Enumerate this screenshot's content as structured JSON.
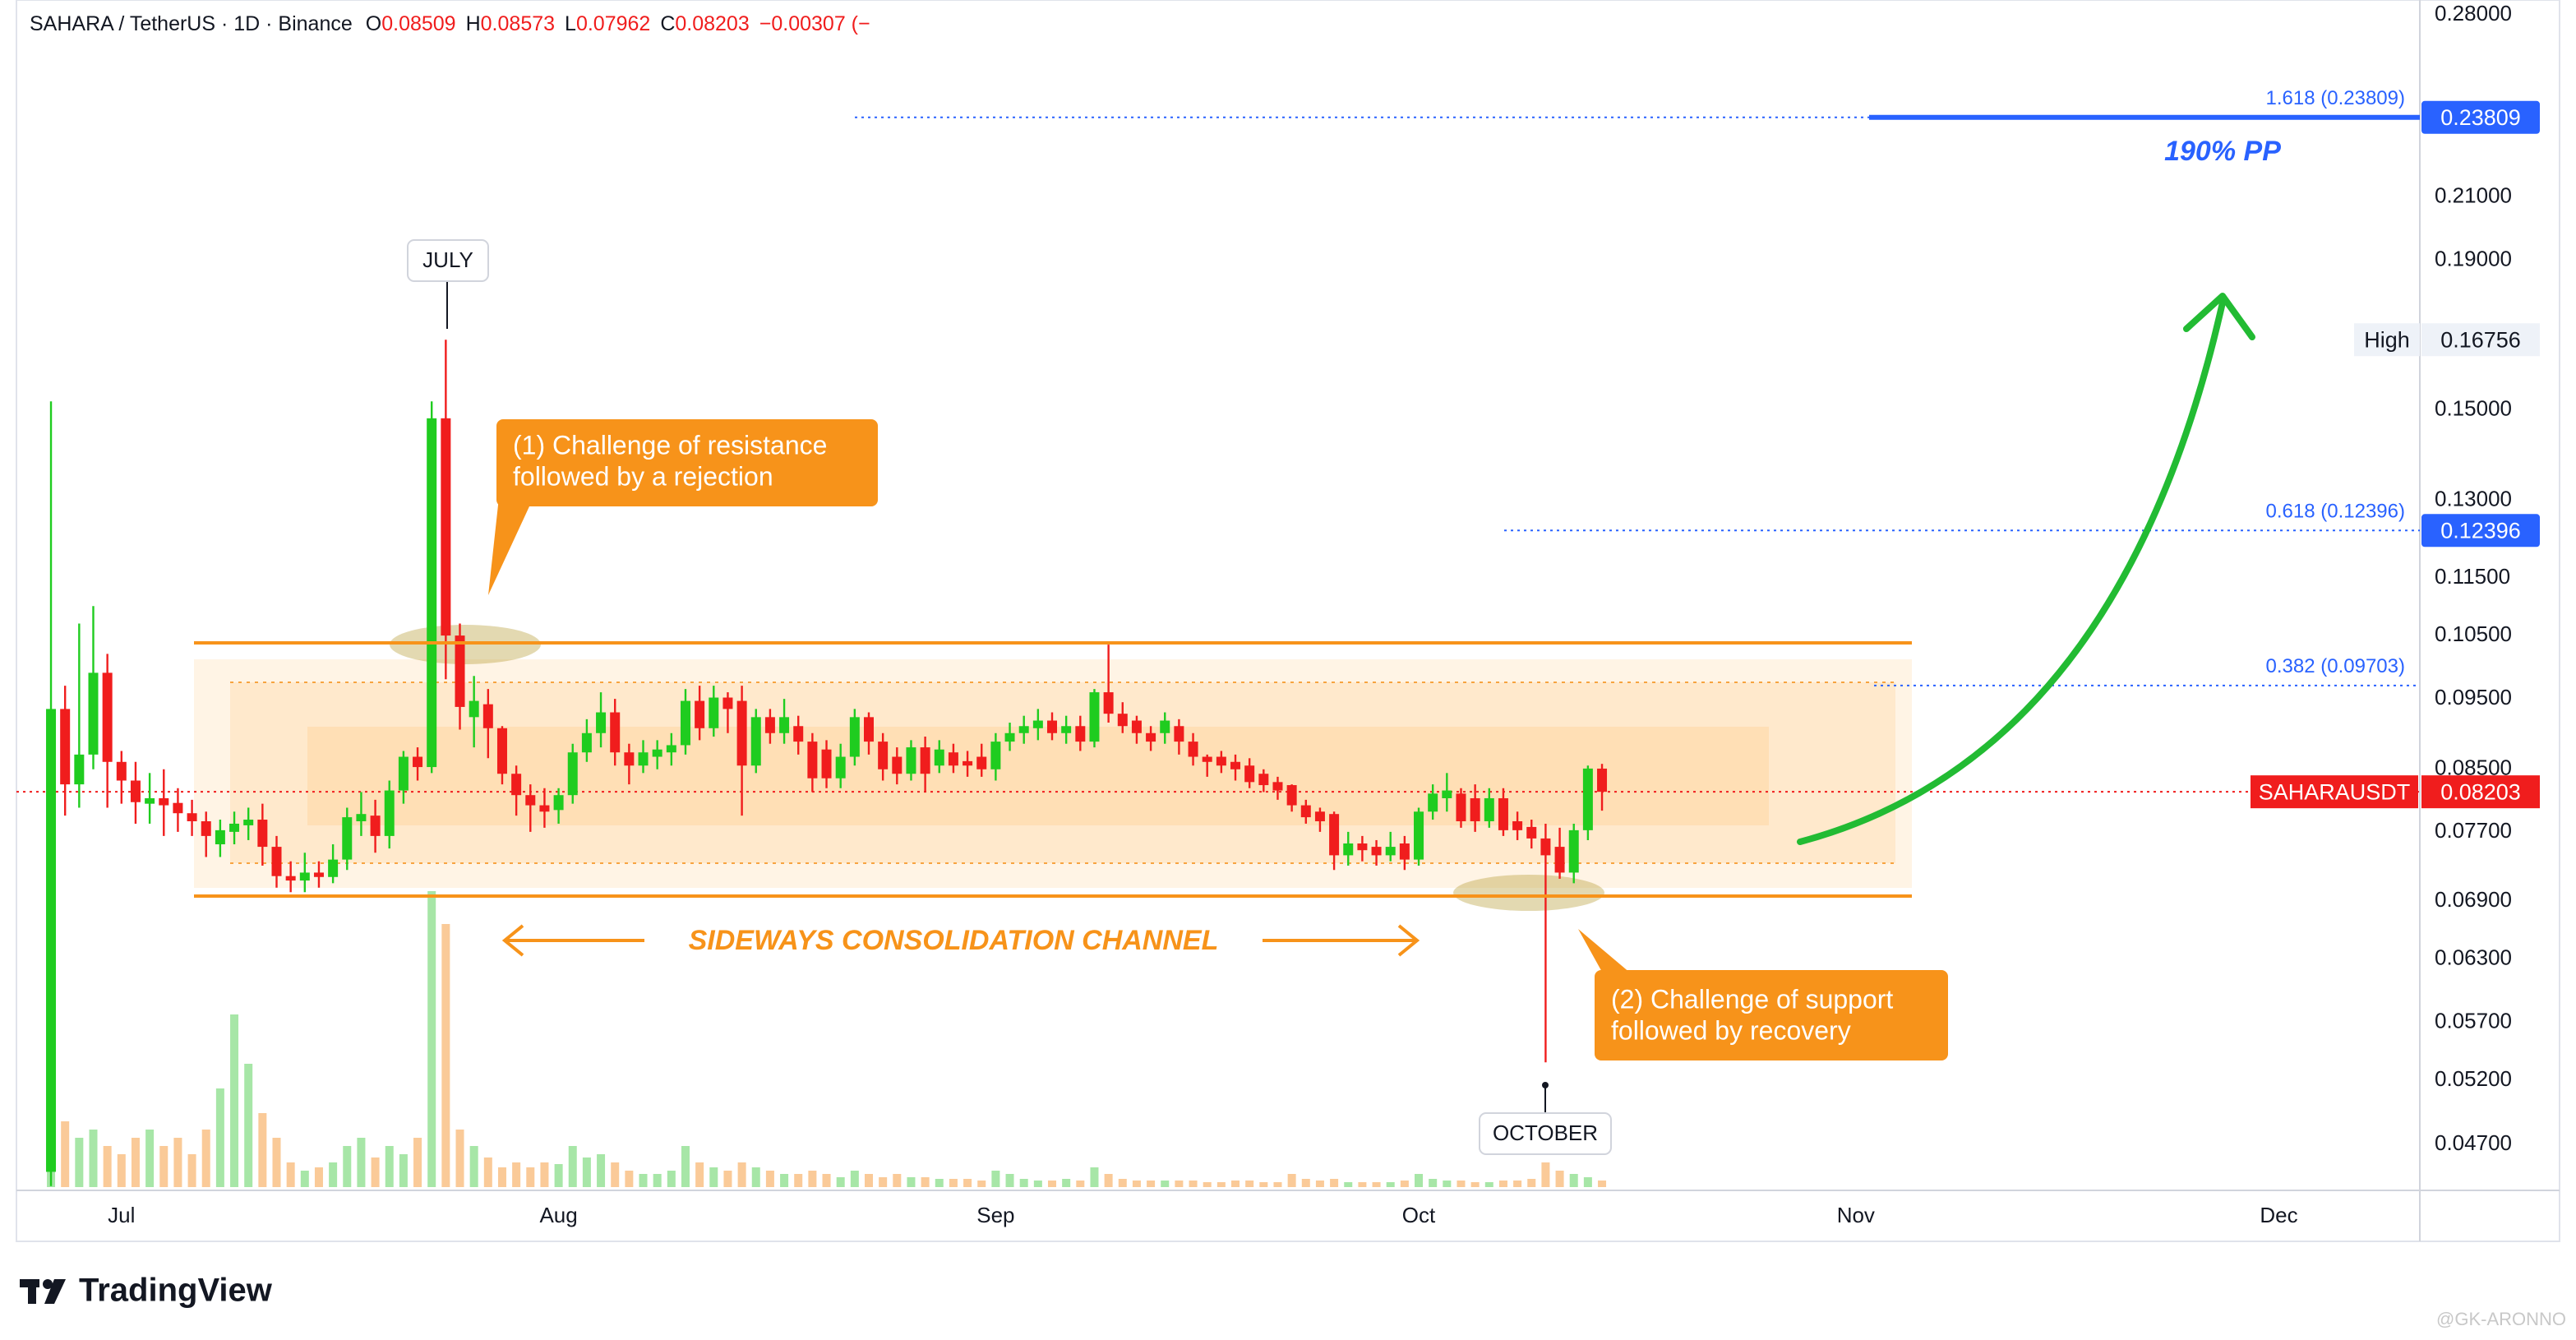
{
  "header": {
    "title": "SAHARA / TetherUS · 1D · Binance",
    "ohlc_keys": [
      "O",
      "H",
      "L",
      "C"
    ],
    "change": "−0.00307 (−"
  },
  "chart_data": {
    "type": "candlestick",
    "log_scale": true,
    "grid": false,
    "ylim": [
      0.0437,
      0.2866
    ],
    "yticks": [
      {
        "value": 0.28,
        "label": "0.28000"
      },
      {
        "value": 0.21,
        "label": "0.21000"
      },
      {
        "value": 0.19,
        "label": "0.19000"
      },
      {
        "value": 0.15,
        "label": "0.15000"
      },
      {
        "value": 0.13,
        "label": "0.13000"
      },
      {
        "value": 0.115,
        "label": "0.11500"
      },
      {
        "value": 0.105,
        "label": "0.10500"
      },
      {
        "value": 0.095,
        "label": "0.09500"
      },
      {
        "value": 0.085,
        "label": "0.08500"
      },
      {
        "value": 0.077,
        "label": "0.07700"
      },
      {
        "value": 0.069,
        "label": "0.06900"
      },
      {
        "value": 0.063,
        "label": "0.06300"
      },
      {
        "value": 0.057,
        "label": "0.05700"
      },
      {
        "value": 0.052,
        "label": "0.05200"
      },
      {
        "value": 0.047,
        "label": "0.04700"
      }
    ],
    "xlim": [
      -2.45,
      168
    ],
    "xticks": [
      {
        "value": 5,
        "label": "Jul"
      },
      {
        "value": 36,
        "label": "Aug"
      },
      {
        "value": 67,
        "label": "Sep"
      },
      {
        "value": 97,
        "label": "Oct"
      },
      {
        "value": 128,
        "label": "Nov"
      },
      {
        "value": 158,
        "label": "Dec"
      }
    ],
    "series": [
      {
        "name": "SAHARAUSDT",
        "up_color": "#1fcc1f",
        "down_color": "#f01d1d",
        "volume_up_color": "rgba(60,200,60,0.45)",
        "volume_down_color": "rgba(245,150,50,0.5)",
        "open": [
          0.045,
          0.0935,
          0.083,
          0.087,
          0.099,
          0.086,
          0.0835,
          0.0805,
          0.0812,
          0.0806,
          0.0793,
          0.0783,
          0.0755,
          0.077,
          0.0778,
          0.0785,
          0.0752,
          0.0718,
          0.0713,
          0.0722,
          0.0717,
          0.0737,
          0.0783,
          0.079,
          0.0765,
          0.0822,
          0.0867,
          0.0853,
          0.148,
          0.105,
          0.0923,
          0.0942,
          0.0907,
          0.0844,
          0.0816,
          0.0803,
          0.0797,
          0.0816,
          0.0873,
          0.09,
          0.093,
          0.0873,
          0.0855,
          0.0867,
          0.0873,
          0.0883,
          0.0947,
          0.0907,
          0.0952,
          0.0947,
          0.0855,
          0.0923,
          0.09,
          0.091,
          0.0888,
          0.0877,
          0.0838,
          0.0867,
          0.0923,
          0.0888,
          0.0867,
          0.0844,
          0.088,
          0.0855,
          0.0873,
          0.0861,
          0.0867,
          0.085,
          0.0888,
          0.09,
          0.0907,
          0.0918,
          0.09,
          0.091,
          0.0888,
          0.096,
          0.0928,
          0.0918,
          0.09,
          0.09,
          0.091,
          0.0888,
          0.0867,
          0.0867,
          0.086,
          0.0855,
          0.0844,
          0.0833,
          0.0829,
          0.0803,
          0.0795,
          0.0792,
          0.0742,
          0.0756,
          0.0752,
          0.0742,
          0.0756,
          0.0737,
          0.0795,
          0.0812,
          0.0818,
          0.0812,
          0.0783,
          0.0812,
          0.0783,
          0.0776,
          0.0762,
          0.0752,
          0.0722,
          0.0772,
          0.08509
        ],
        "high": [
          0.152,
          0.097,
          0.107,
          0.11,
          0.102,
          0.0875,
          0.086,
          0.0845,
          0.085,
          0.0825,
          0.081,
          0.0795,
          0.0785,
          0.0795,
          0.08,
          0.0805,
          0.0765,
          0.0735,
          0.0745,
          0.0735,
          0.0755,
          0.08,
          0.082,
          0.081,
          0.0835,
          0.0875,
          0.088,
          0.152,
          0.16756,
          0.107,
          0.0985,
          0.0965,
          0.091,
          0.0855,
          0.083,
          0.0825,
          0.0825,
          0.0885,
          0.092,
          0.096,
          0.095,
          0.0885,
          0.089,
          0.089,
          0.09,
          0.0965,
          0.097,
          0.097,
          0.096,
          0.097,
          0.0935,
          0.0935,
          0.095,
          0.0925,
          0.09,
          0.089,
          0.0885,
          0.0935,
          0.093,
          0.09,
          0.088,
          0.089,
          0.0895,
          0.089,
          0.0885,
          0.0875,
          0.0885,
          0.09,
          0.0915,
          0.0925,
          0.0935,
          0.093,
          0.0925,
          0.0925,
          0.0965,
          0.1035,
          0.0945,
          0.0925,
          0.091,
          0.093,
          0.092,
          0.09,
          0.087,
          0.0875,
          0.087,
          0.0865,
          0.085,
          0.084,
          0.083,
          0.081,
          0.08,
          0.0795,
          0.077,
          0.0765,
          0.076,
          0.077,
          0.0765,
          0.08,
          0.083,
          0.0845,
          0.0825,
          0.083,
          0.0825,
          0.0825,
          0.0795,
          0.0785,
          0.078,
          0.0775,
          0.078,
          0.0855,
          0.08573
        ],
        "low": [
          0.044,
          0.079,
          0.08,
          0.085,
          0.08,
          0.0805,
          0.078,
          0.078,
          0.0765,
          0.077,
          0.0765,
          0.074,
          0.074,
          0.0755,
          0.076,
          0.073,
          0.0705,
          0.07,
          0.07,
          0.0705,
          0.071,
          0.0725,
          0.0765,
          0.0745,
          0.075,
          0.0805,
          0.0835,
          0.0845,
          0.098,
          0.0905,
          0.088,
          0.0865,
          0.083,
          0.079,
          0.077,
          0.0775,
          0.078,
          0.0805,
          0.086,
          0.088,
          0.0855,
          0.083,
          0.0845,
          0.085,
          0.0855,
          0.087,
          0.089,
          0.0895,
          0.09,
          0.079,
          0.0845,
          0.0885,
          0.0885,
          0.087,
          0.082,
          0.0825,
          0.0825,
          0.0855,
          0.087,
          0.0835,
          0.083,
          0.0835,
          0.082,
          0.0845,
          0.0845,
          0.084,
          0.084,
          0.0835,
          0.0875,
          0.0885,
          0.089,
          0.089,
          0.0885,
          0.0875,
          0.088,
          0.0915,
          0.09,
          0.0885,
          0.0875,
          0.0885,
          0.087,
          0.0855,
          0.084,
          0.0845,
          0.0835,
          0.0825,
          0.082,
          0.081,
          0.0795,
          0.078,
          0.077,
          0.0725,
          0.073,
          0.0735,
          0.073,
          0.0735,
          0.0725,
          0.073,
          0.0785,
          0.0795,
          0.0775,
          0.077,
          0.0775,
          0.0765,
          0.076,
          0.075,
          0.0535,
          0.0715,
          0.071,
          0.076,
          0.07962
        ],
        "close": [
          0.0935,
          0.083,
          0.087,
          0.099,
          0.086,
          0.0835,
          0.0807,
          0.0812,
          0.0803,
          0.0793,
          0.0783,
          0.0765,
          0.0772,
          0.078,
          0.0785,
          0.0752,
          0.0718,
          0.0713,
          0.0722,
          0.0717,
          0.0737,
          0.0788,
          0.0792,
          0.0765,
          0.0822,
          0.0867,
          0.0853,
          0.148,
          0.105,
          0.0938,
          0.0947,
          0.0907,
          0.0844,
          0.0816,
          0.0803,
          0.0795,
          0.0816,
          0.0873,
          0.09,
          0.093,
          0.0873,
          0.0855,
          0.0873,
          0.0877,
          0.0883,
          0.0947,
          0.0907,
          0.0952,
          0.0935,
          0.0855,
          0.0923,
          0.09,
          0.0923,
          0.0888,
          0.0838,
          0.0838,
          0.0867,
          0.0923,
          0.0888,
          0.085,
          0.0844,
          0.088,
          0.0844,
          0.0877,
          0.0855,
          0.0855,
          0.085,
          0.0888,
          0.09,
          0.091,
          0.0918,
          0.09,
          0.091,
          0.0888,
          0.096,
          0.0928,
          0.091,
          0.09,
          0.0888,
          0.0918,
          0.0888,
          0.0867,
          0.086,
          0.0855,
          0.085,
          0.0833,
          0.0829,
          0.0822,
          0.0803,
          0.0788,
          0.0783,
          0.0742,
          0.0756,
          0.0748,
          0.0742,
          0.0752,
          0.0737,
          0.0795,
          0.0818,
          0.0822,
          0.0783,
          0.0783,
          0.0812,
          0.0772,
          0.0772,
          0.0762,
          0.0742,
          0.0722,
          0.0772,
          0.0851,
          0.08203
        ],
        "volume": [
          60,
          40,
          30,
          35,
          25,
          20,
          30,
          35,
          25,
          30,
          20,
          35,
          60,
          105,
          75,
          45,
          30,
          15,
          10,
          12,
          15,
          25,
          30,
          18,
          25,
          20,
          30,
          180,
          160,
          35,
          25,
          18,
          12,
          15,
          12,
          15,
          14,
          25,
          18,
          20,
          15,
          10,
          8,
          8,
          10,
          25,
          15,
          12,
          10,
          15,
          12,
          10,
          8,
          8,
          10,
          8,
          6,
          10,
          8,
          6,
          8,
          6,
          6,
          5,
          5,
          5,
          4,
          10,
          8,
          5,
          4,
          4,
          5,
          4,
          12,
          8,
          5,
          4,
          4,
          4,
          4,
          4,
          3,
          3,
          4,
          4,
          3,
          3,
          8,
          5,
          4,
          5,
          3,
          3,
          3,
          3,
          4,
          8,
          5,
          4,
          4,
          3,
          3,
          4,
          4,
          5,
          15,
          10,
          8,
          6,
          4
        ]
      }
    ],
    "high_tag": "High",
    "fib_levels": [
      {
        "value": 0.23809,
        "label": "1.618 (0.23809)"
      },
      {
        "value": 0.12396,
        "label": "0.618 (0.12396)"
      },
      {
        "value": 0.09703,
        "label": "0.382 (0.09703)"
      }
    ],
    "annotations": {
      "july": "JULY",
      "october": "OCTOBER",
      "resistance": [
        "(1) Challenge of resistance",
        "followed by a rejection"
      ],
      "support": [
        "(2) Challenge of support",
        "followed by recovery"
      ],
      "channel": "SIDEWAYS CONSOLIDATION CHANNEL",
      "target": "190% PP"
    }
  },
  "footer": {
    "brand": "TradingView",
    "watermark": "@GK-ARONNO"
  }
}
